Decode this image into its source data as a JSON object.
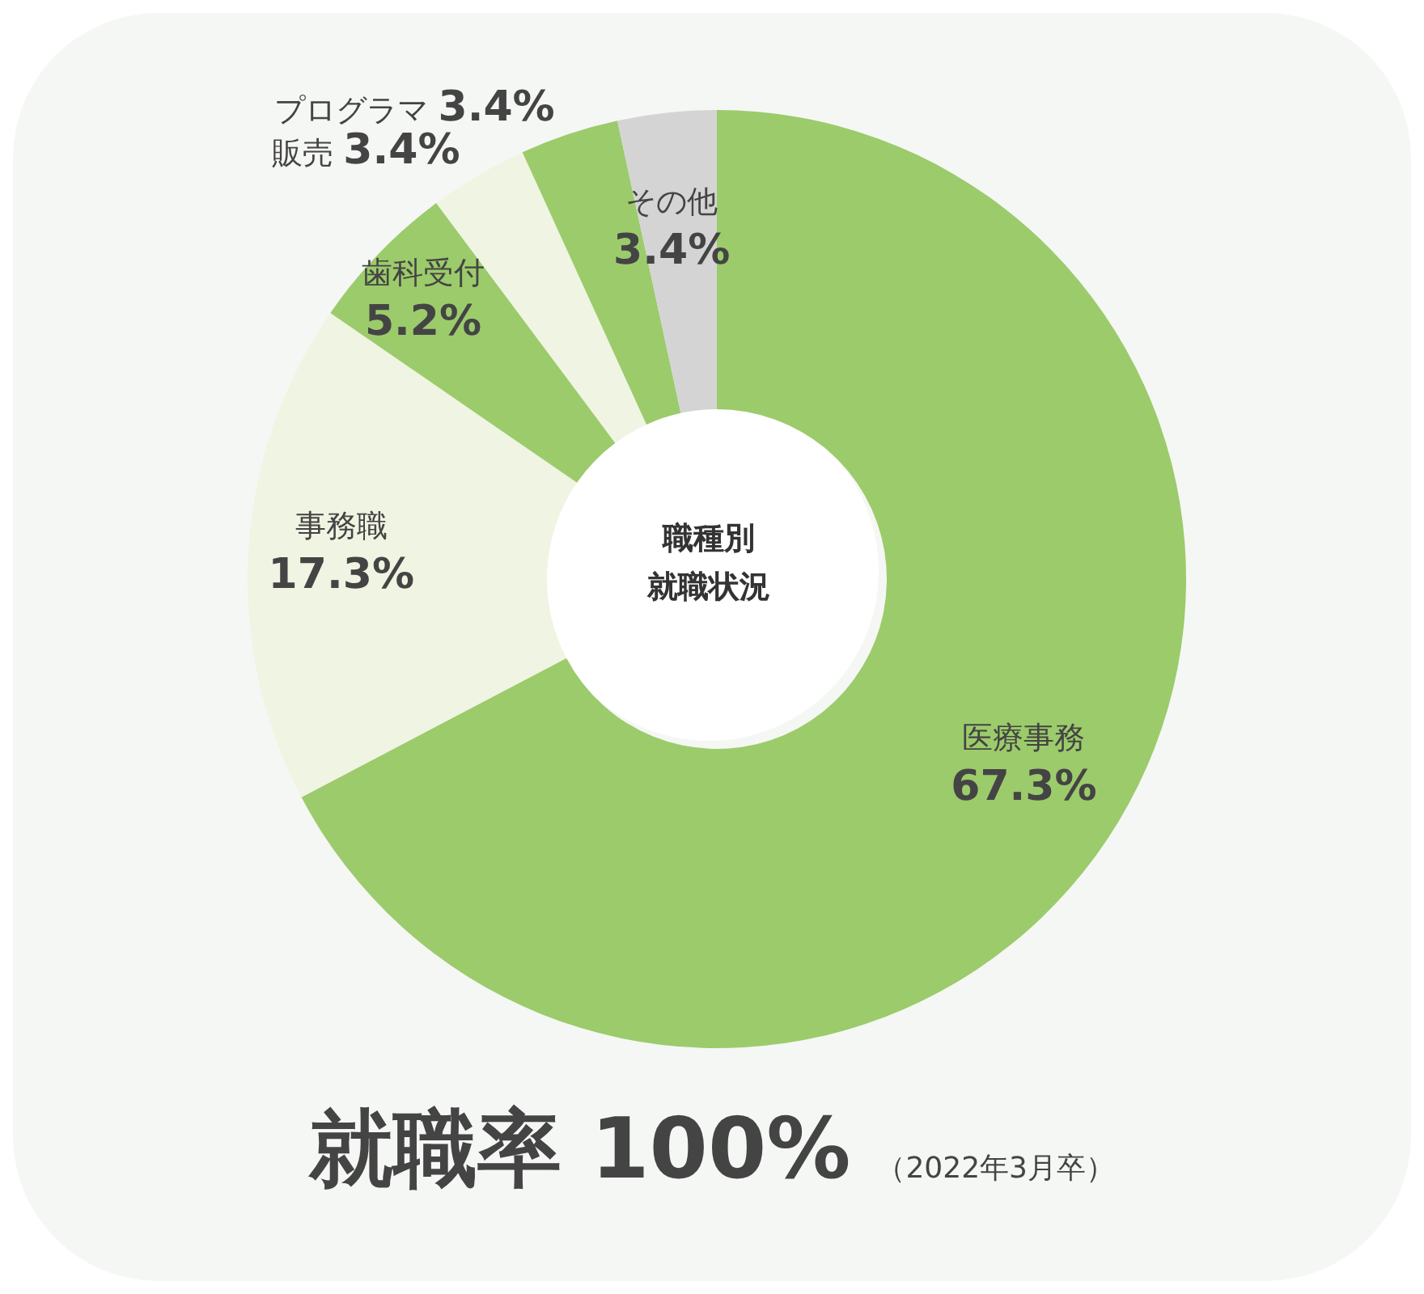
{
  "chart_data": {
    "type": "donut",
    "title": "職種別就職状況",
    "categories": [
      "医療事務",
      "事務職",
      "歯科受付",
      "販売",
      "プログラマ",
      "その他"
    ],
    "values": [
      67.3,
      17.3,
      5.2,
      3.4,
      3.4,
      3.4
    ],
    "value_labels": [
      "67.3%",
      "17.3%",
      "5.2%",
      "3.4%",
      "3.4%",
      "3.4%"
    ],
    "colors": [
      "#9ccb6b",
      "#f0f4e2",
      "#9ccb6b",
      "#f0f4e2",
      "#9ccb6b",
      "#d4d4d4"
    ],
    "annotations": [
      "就職率 100%",
      "（2022年3月卒）"
    ]
  }
}
